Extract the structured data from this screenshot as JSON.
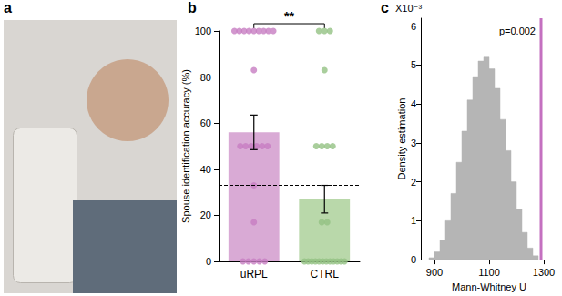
{
  "photo": {
    "title": "a"
  },
  "chart_data": [
    {
      "type": "bar",
      "title": "b",
      "categories": [
        "uRPL",
        "CTRL"
      ],
      "values": [
        56,
        27
      ],
      "errors": [
        7.5,
        6
      ],
      "colors": [
        "#d9aad5",
        "#b9d8aa"
      ],
      "ylabel": "Spouse identification accuracy (%)",
      "ylim": [
        0,
        100
      ],
      "yticks": [
        0,
        20,
        40,
        60,
        80,
        100
      ],
      "reference_line": {
        "value": 33.3,
        "line_style": "dashed"
      },
      "significance": "**",
      "points": [
        {
          "color": "#c77dc2",
          "values": [
            100,
            100,
            100,
            100,
            100,
            100,
            100,
            100,
            100,
            83,
            50,
            50,
            50,
            50,
            50,
            50,
            33,
            17,
            0,
            0,
            0,
            0,
            0
          ]
        },
        {
          "color": "#94c283",
          "values": [
            100,
            100,
            100,
            83,
            50,
            50,
            50,
            50,
            17,
            17,
            0,
            0,
            0,
            0,
            0,
            0,
            0,
            0,
            0,
            0,
            0,
            0
          ]
        }
      ]
    },
    {
      "type": "histogram",
      "title": "c",
      "xlabel": "Mann-Whitney U",
      "ylabel": "Density estimation",
      "y_scale_label": "X10⁻³",
      "bins": [
        880,
        900,
        920,
        940,
        960,
        980,
        1000,
        1020,
        1040,
        1060,
        1080,
        1100,
        1120,
        1140,
        1160,
        1180,
        1200,
        1220,
        1240,
        1260,
        1280
      ],
      "values": [
        0.05,
        0.2,
        0.5,
        1.0,
        1.7,
        2.5,
        3.3,
        4.1,
        4.7,
        5.1,
        5.2,
        4.9,
        4.4,
        3.6,
        2.8,
        2.0,
        1.3,
        0.7,
        0.3,
        0.1
      ],
      "color": "#b5b5b5",
      "xlim": [
        850,
        1350
      ],
      "xticks": [
        900,
        1100,
        1300
      ],
      "ylim": [
        0,
        6.2
      ],
      "yticks": [
        0,
        1,
        2,
        3,
        4,
        5,
        6
      ],
      "observed": {
        "value": 1290,
        "label": "p=0.002",
        "color": "#c470c0"
      }
    }
  ]
}
